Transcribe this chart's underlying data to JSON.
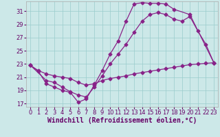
{
  "xlabel": "Windchill (Refroidissement éolien,°C)",
  "bg_color": "#cce8e8",
  "line_color": "#882288",
  "marker": "D",
  "markersize": 2.5,
  "linewidth": 0.9,
  "xlim": [
    -0.5,
    23.5
  ],
  "ylim": [
    16.5,
    32.5
  ],
  "xticks": [
    0,
    1,
    2,
    3,
    4,
    5,
    6,
    7,
    8,
    9,
    10,
    11,
    12,
    13,
    14,
    15,
    16,
    17,
    18,
    19,
    20,
    21,
    22,
    23
  ],
  "yticks": [
    17,
    19,
    21,
    23,
    25,
    27,
    29,
    31
  ],
  "grid_color": "#99cccc",
  "curve1_x": [
    0,
    1,
    2,
    3,
    4,
    5,
    6,
    7,
    8,
    9,
    10,
    11,
    12,
    13,
    14,
    15,
    16,
    17,
    18,
    20,
    23
  ],
  "curve1_y": [
    22.8,
    21.9,
    20.0,
    19.5,
    19.0,
    18.7,
    17.2,
    17.7,
    19.8,
    22.0,
    24.5,
    26.5,
    29.5,
    32.1,
    32.3,
    32.2,
    32.2,
    32.1,
    31.3,
    30.5,
    23.2
  ],
  "curve2_x": [
    0,
    2,
    3,
    4,
    5,
    6,
    7,
    8,
    9,
    10,
    11,
    12,
    13,
    14,
    15,
    16,
    17,
    18,
    19,
    20,
    21,
    22,
    23
  ],
  "curve2_y": [
    22.8,
    20.5,
    20.2,
    19.5,
    18.8,
    18.3,
    18.0,
    19.5,
    21.2,
    23.0,
    24.5,
    26.0,
    27.8,
    29.5,
    30.5,
    30.8,
    30.5,
    29.8,
    29.5,
    30.2,
    28.0,
    26.0,
    23.2
  ],
  "curve3_x": [
    0,
    1,
    2,
    3,
    4,
    5,
    6,
    7,
    8,
    9,
    10,
    11,
    12,
    13,
    14,
    15,
    16,
    17,
    18,
    19,
    20,
    21,
    22,
    23
  ],
  "curve3_y": [
    22.8,
    22.0,
    21.5,
    21.2,
    21.0,
    20.8,
    20.2,
    19.8,
    20.0,
    20.5,
    20.8,
    21.0,
    21.2,
    21.5,
    21.7,
    21.9,
    22.1,
    22.3,
    22.5,
    22.7,
    22.9,
    23.0,
    23.1,
    23.2
  ],
  "xlabel_fontsize": 7,
  "tick_fontsize": 6,
  "tick_color": "#660066"
}
